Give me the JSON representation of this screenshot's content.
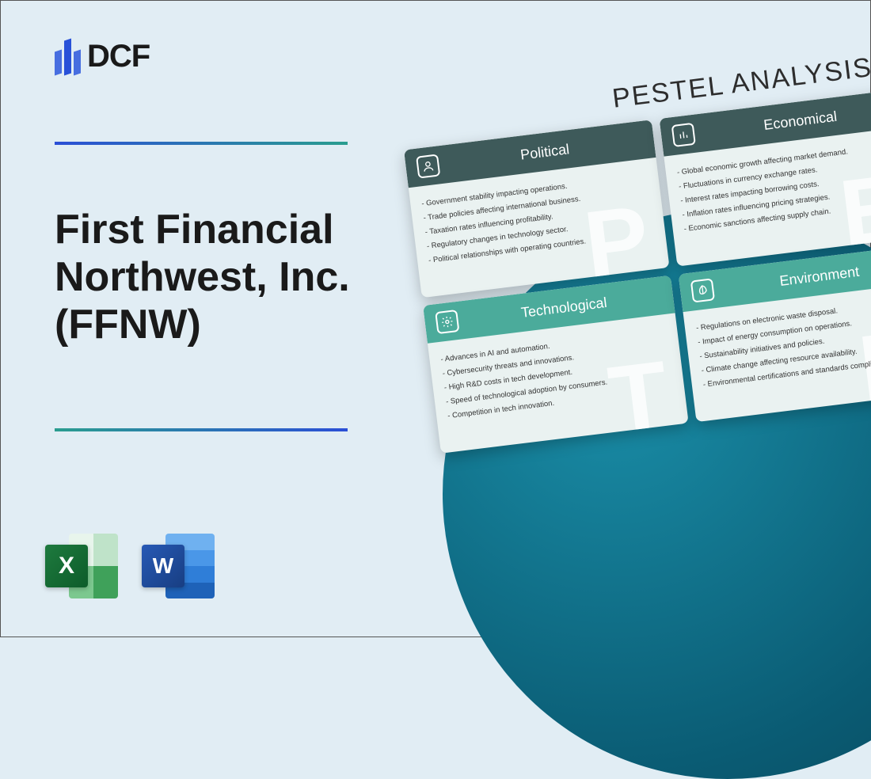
{
  "logo": {
    "text": "DCF"
  },
  "title": "First Financial Northwest, Inc. (FFNW)",
  "colors": {
    "page_bg": "#e1edf4",
    "logo_blue": "#2851d8",
    "divider_gradient_top": [
      "#2b4fd6",
      "#2a9d8f"
    ],
    "divider_gradient_bottom": [
      "#2a9d8f",
      "#2b4fd6"
    ],
    "circle_gradient": [
      "#1a8ea8",
      "#0a5b73",
      "#084a5e"
    ],
    "card_dark": "#3e5a5a",
    "card_teal": "#4bab9b",
    "card_body_bg": "#eaf2f1",
    "excel": [
      "#e8f5ec",
      "#bfe3c9",
      "#7cc88f",
      "#3fa15a",
      "#1e7a3e"
    ],
    "word": [
      "#6fb1f0",
      "#4a97e8",
      "#2f7ed8",
      "#1e62b8",
      "#2759b5"
    ]
  },
  "fileIcons": {
    "excel_letter": "X",
    "word_letter": "W"
  },
  "pestel": {
    "title": "PESTEL ANALYSIS",
    "cards": [
      {
        "key": "political",
        "label": "Political",
        "theme": "dark",
        "letter": "P",
        "icon": "person",
        "items": [
          "Government stability impacting operations.",
          "Trade policies affecting international business.",
          "Taxation rates influencing profitability.",
          "Regulatory changes in technology sector.",
          "Political relationships with operating countries."
        ]
      },
      {
        "key": "economical",
        "label": "Economical",
        "theme": "dark",
        "letter": "E",
        "icon": "bars",
        "items": [
          "Global economic growth affecting market demand.",
          "Fluctuations in currency exchange rates.",
          "Interest rates impacting borrowing costs.",
          "Inflation rates influencing pricing strategies.",
          "Economic sanctions affecting supply chain."
        ]
      },
      {
        "key": "technological",
        "label": "Technological",
        "theme": "teal",
        "letter": "T",
        "icon": "gear",
        "items": [
          "Advances in AI and automation.",
          "Cybersecurity threats and innovations.",
          "High R&D costs in tech development.",
          "Speed of technological adoption by consumers.",
          "Competition in tech innovation."
        ]
      },
      {
        "key": "environment",
        "label": "Environment",
        "theme": "teal",
        "letter": "E",
        "icon": "leaf",
        "items": [
          "Regulations on electronic waste disposal.",
          "Impact of energy consumption on operations.",
          "Sustainability initiatives and policies.",
          "Climate change affecting resource availability.",
          "Environmental certifications and standards compliance."
        ]
      }
    ]
  }
}
